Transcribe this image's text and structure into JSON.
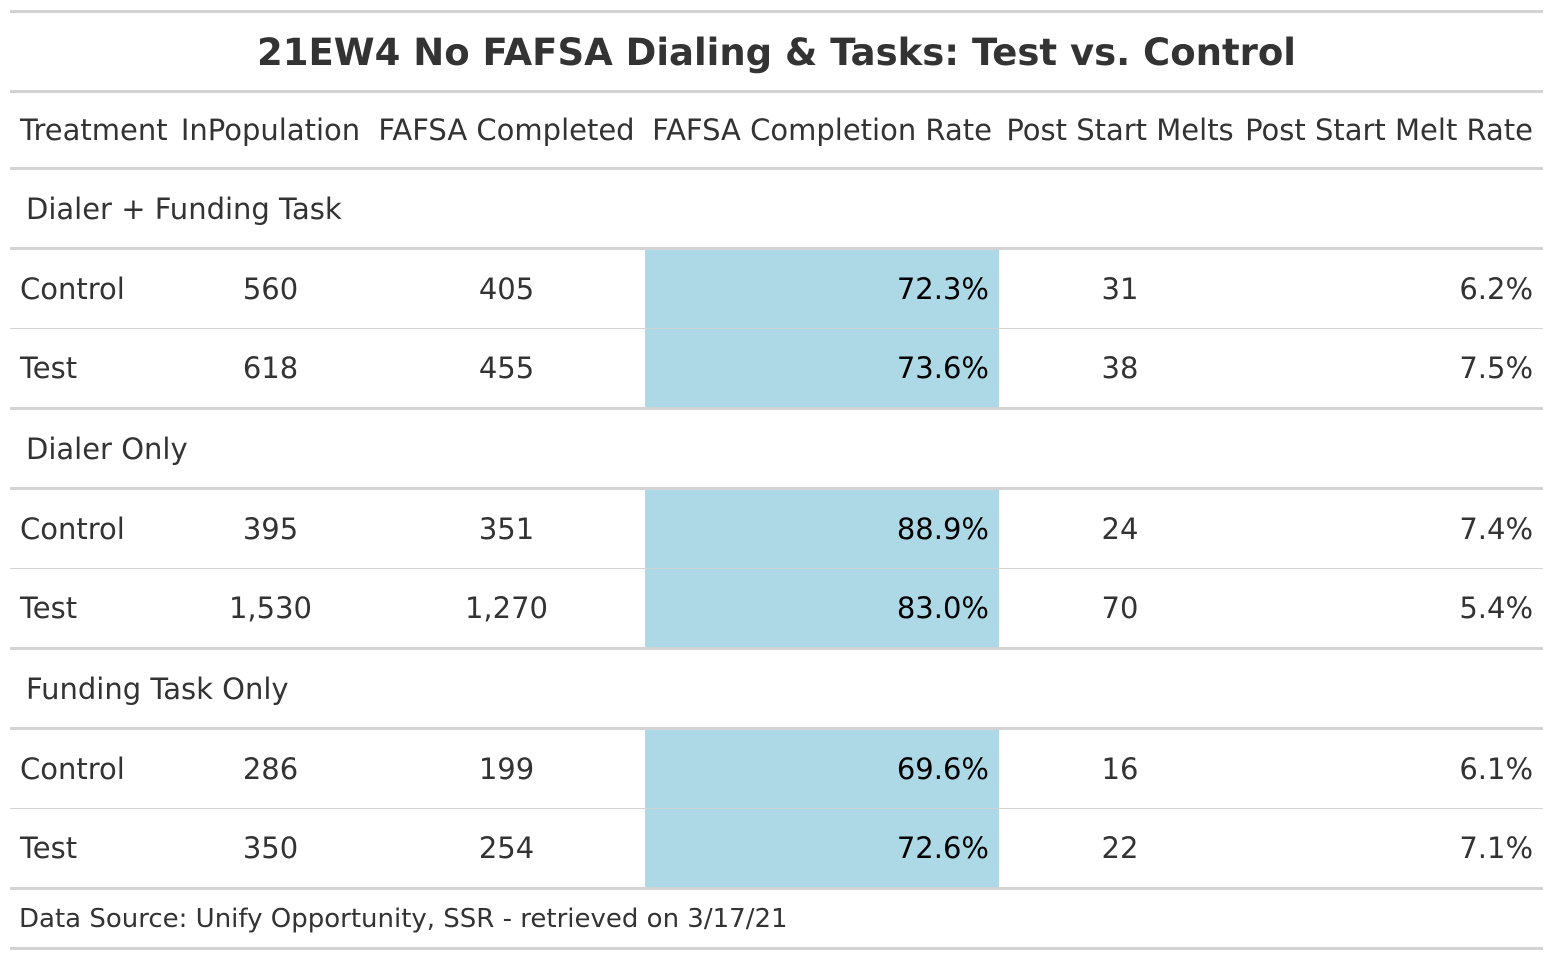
{
  "chart_data": {
    "type": "table",
    "title": "21EW4 No FAFSA Dialing & Tasks: Test vs. Control",
    "columns": [
      "Treatment",
      "InPopulation",
      "FAFSA Completed",
      "FAFSA Completion Rate",
      "Post Start Melts",
      "Post Start Melt Rate"
    ],
    "groups": [
      {
        "name": "Dialer + Funding Task",
        "rows": [
          [
            "Control",
            "560",
            "405",
            "72.3%",
            "31",
            "6.2%"
          ],
          [
            "Test",
            "618",
            "455",
            "73.6%",
            "38",
            "7.5%"
          ]
        ]
      },
      {
        "name": "Dialer Only",
        "rows": [
          [
            "Control",
            "395",
            "351",
            "88.9%",
            "24",
            "7.4%"
          ],
          [
            "Test",
            "1,530",
            "1,270",
            "83.0%",
            "70",
            "5.4%"
          ]
        ]
      },
      {
        "name": "Funding Task Only",
        "rows": [
          [
            "Control",
            "286",
            "199",
            "69.6%",
            "16",
            "6.1%"
          ],
          [
            "Test",
            "350",
            "254",
            "72.6%",
            "22",
            "7.1%"
          ]
        ]
      }
    ],
    "source_note": "Data Source: Unify Opportunity, SSR - retrieved on 3/17/21",
    "highlight_column": "FAFSA Completion Rate",
    "highlight_color": "#add8e6",
    "rule_color": "#d3d3d3",
    "text_color": "#333333"
  }
}
